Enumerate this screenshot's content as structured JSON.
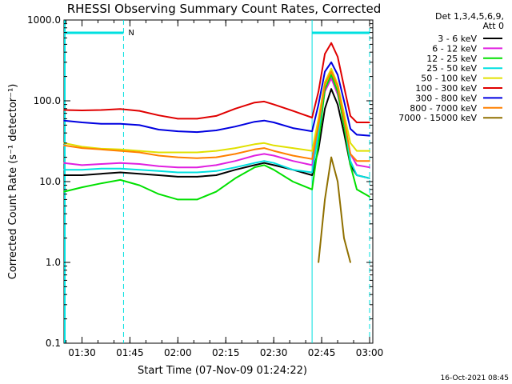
{
  "chart_data": {
    "type": "line",
    "title": "RHESSI Observing Summary Count Rates, Corrected",
    "xlabel": "Start Time (07-Nov-09 01:24:22)",
    "ylabel": "Corrected Count Rate (s⁻¹ detector⁻¹)",
    "y_scale": "log",
    "ylim": [
      0.1,
      1000
    ],
    "y_ticks": [
      "1000.0",
      "100.0",
      "10.0",
      "1.0",
      "0.1"
    ],
    "x_ticks": [
      "01:30",
      "01:45",
      "02:00",
      "02:15",
      "02:30",
      "02:45",
      "03:00"
    ],
    "legend_header": [
      "Det 1,3,4,5,6,9,",
      "Att 0"
    ],
    "legend_position": "right",
    "footer_timestamp": "16-Oct-2021 08:45",
    "attenuator_flag": "N",
    "x_times": [
      "01:24",
      "01:30",
      "01:36",
      "01:42",
      "01:48",
      "01:54",
      "02:00",
      "02:06",
      "02:12",
      "02:18",
      "02:24",
      "02:27",
      "02:30",
      "02:36",
      "02:42",
      "02:44",
      "02:46",
      "02:48",
      "02:50",
      "02:52",
      "02:54",
      "02:56",
      "03:00"
    ],
    "series": [
      {
        "name": "3 - 6 keV",
        "color": "#000000",
        "values": [
          12,
          12,
          12.5,
          13,
          12.5,
          12,
          11.5,
          11.5,
          12,
          14,
          16,
          17,
          16,
          14,
          12,
          25,
          80,
          140,
          90,
          40,
          16,
          12,
          11
        ]
      },
      {
        "name": "6 - 12 keV",
        "color": "#e020e0",
        "values": [
          17,
          16,
          16.5,
          17,
          16.5,
          15.5,
          15,
          15,
          16,
          18,
          21,
          22,
          21,
          18,
          16,
          40,
          130,
          190,
          120,
          55,
          22,
          16,
          15
        ]
      },
      {
        "name": "12 - 25 keV",
        "color": "#00e000",
        "values": [
          7.5,
          8.5,
          9.5,
          10.5,
          9,
          7,
          6,
          6,
          7.5,
          11,
          15,
          16,
          14,
          10,
          8,
          30,
          140,
          210,
          130,
          50,
          16,
          8,
          6.5
        ]
      },
      {
        "name": "25 - 50 keV",
        "color": "#00e0e0",
        "values": [
          14,
          14,
          14.5,
          14.5,
          14,
          13.5,
          13,
          13,
          13.5,
          15,
          17,
          18,
          17,
          14,
          13,
          40,
          170,
          240,
          150,
          60,
          18,
          12,
          11
        ]
      },
      {
        "name": "50 - 100 keV",
        "color": "#e0e000",
        "values": [
          30,
          27,
          25.5,
          25,
          24,
          23,
          23,
          23,
          24,
          26,
          29,
          30,
          28,
          26,
          24,
          60,
          170,
          250,
          160,
          70,
          30,
          24,
          24
        ]
      },
      {
        "name": "100 - 300 keV",
        "color": "#e00000",
        "values": [
          77,
          76,
          77,
          79,
          75,
          66,
          60,
          60,
          65,
          80,
          95,
          98,
          90,
          75,
          62,
          130,
          380,
          520,
          350,
          150,
          65,
          54,
          54
        ]
      },
      {
        "name": "300 - 800 keV",
        "color": "#0000e0",
        "values": [
          57,
          54,
          52,
          52,
          50,
          44,
          42,
          41,
          43,
          48,
          55,
          57,
          54,
          46,
          42,
          90,
          230,
          300,
          210,
          100,
          45,
          38,
          37
        ]
      },
      {
        "name": "800 - 7000 keV",
        "color": "#ff8000",
        "values": [
          28,
          26,
          25,
          24,
          23,
          21,
          20,
          19.5,
          20,
          22,
          25,
          26,
          24,
          21,
          19,
          50,
          160,
          230,
          150,
          60,
          22,
          18,
          18
        ]
      },
      {
        "name": "7000 - 15000 keV",
        "color": "#907000",
        "values": [
          null,
          null,
          null,
          null,
          null,
          null,
          null,
          null,
          null,
          null,
          null,
          null,
          null,
          null,
          null,
          1.0,
          6,
          20,
          10,
          2,
          1.0,
          null,
          null
        ]
      }
    ]
  }
}
